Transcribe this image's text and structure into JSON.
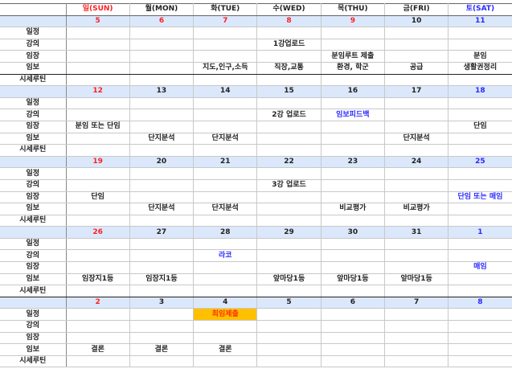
{
  "colors": {
    "sunday": "#ff2020",
    "saturday": "#2a2aff",
    "date_row_bg": "#dbe8fb",
    "highlight_bg": "#ffc000"
  },
  "header": {
    "days": [
      {
        "label": "일(SUN)",
        "color": "red"
      },
      {
        "label": "월(MON)",
        "color": ""
      },
      {
        "label": "화(TUE)",
        "color": ""
      },
      {
        "label": "수(WED)",
        "color": ""
      },
      {
        "label": "목(THU)",
        "color": ""
      },
      {
        "label": "금(FRI)",
        "color": ""
      },
      {
        "label": "토(SAT)",
        "color": "blue"
      }
    ]
  },
  "row_labels": [
    "일정",
    "강의",
    "임장",
    "임보",
    "시세루틴"
  ],
  "weeks": [
    {
      "dates": [
        {
          "t": "5",
          "c": "red"
        },
        {
          "t": "6",
          "c": "red"
        },
        {
          "t": "7",
          "c": "red"
        },
        {
          "t": "8",
          "c": "red"
        },
        {
          "t": "9",
          "c": "red"
        },
        {
          "t": "10",
          "c": ""
        },
        {
          "t": "11",
          "c": "blue"
        }
      ],
      "rows": [
        [
          "",
          "",
          "",
          "",
          "",
          "",
          ""
        ],
        [
          "",
          "",
          "",
          "1강업로드",
          "",
          "",
          ""
        ],
        [
          "",
          "",
          "",
          "",
          "분임루트 제출",
          "",
          "분임"
        ],
        [
          "",
          "",
          "지도,인구,소득",
          "직장,교통",
          "환경, 학군",
          "공급",
          "생활권정리"
        ],
        [
          "",
          "",
          "",
          "",
          "",
          "",
          ""
        ]
      ],
      "styles": {}
    },
    {
      "dates": [
        {
          "t": "12",
          "c": "red"
        },
        {
          "t": "13",
          "c": ""
        },
        {
          "t": "14",
          "c": ""
        },
        {
          "t": "15",
          "c": ""
        },
        {
          "t": "16",
          "c": ""
        },
        {
          "t": "17",
          "c": ""
        },
        {
          "t": "18",
          "c": "blue"
        }
      ],
      "rows": [
        [
          "",
          "",
          "",
          "",
          "",
          "",
          ""
        ],
        [
          "",
          "",
          "",
          "2강 업로드",
          "임보피드백",
          "",
          ""
        ],
        [
          "분임 또는 단임",
          "",
          "",
          "",
          "",
          "",
          "단임"
        ],
        [
          "",
          "단지분석",
          "단지분석",
          "",
          "",
          "단지분석",
          ""
        ],
        [
          "",
          "",
          "",
          "",
          "",
          "",
          ""
        ]
      ],
      "styles": {
        "1-4": "blue"
      }
    },
    {
      "dates": [
        {
          "t": "19",
          "c": "red"
        },
        {
          "t": "20",
          "c": ""
        },
        {
          "t": "21",
          "c": ""
        },
        {
          "t": "22",
          "c": ""
        },
        {
          "t": "23",
          "c": ""
        },
        {
          "t": "24",
          "c": ""
        },
        {
          "t": "25",
          "c": "blue"
        }
      ],
      "rows": [
        [
          "",
          "",
          "",
          "",
          "",
          "",
          ""
        ],
        [
          "",
          "",
          "",
          "3강 업로드",
          "",
          "",
          ""
        ],
        [
          "단임",
          "",
          "",
          "",
          "",
          "",
          "단임 또는 매임"
        ],
        [
          "",
          "단지분석",
          "단지분석",
          "",
          "비교평가",
          "비교평가",
          ""
        ],
        [
          "",
          "",
          "",
          "",
          "",
          "",
          ""
        ]
      ],
      "styles": {
        "2-6": "blue"
      }
    },
    {
      "dates": [
        {
          "t": "26",
          "c": "red"
        },
        {
          "t": "27",
          "c": ""
        },
        {
          "t": "28",
          "c": ""
        },
        {
          "t": "29",
          "c": ""
        },
        {
          "t": "30",
          "c": ""
        },
        {
          "t": "31",
          "c": ""
        },
        {
          "t": "1",
          "c": "blue"
        }
      ],
      "rows": [
        [
          "",
          "",
          "",
          "",
          "",
          "",
          ""
        ],
        [
          "",
          "",
          "라코",
          "",
          "",
          "",
          ""
        ],
        [
          "",
          "",
          "",
          "",
          "",
          "",
          "매임"
        ],
        [
          "임장지1등",
          "임장지1등",
          "",
          "앞마당1등",
          "앞마당1등",
          "앞마당1등",
          ""
        ],
        [
          "",
          "",
          "",
          "",
          "",
          "",
          ""
        ]
      ],
      "styles": {
        "1-2": "blue",
        "2-6": "blue"
      }
    },
    {
      "dates": [
        {
          "t": "2",
          "c": "red"
        },
        {
          "t": "3",
          "c": ""
        },
        {
          "t": "4",
          "c": ""
        },
        {
          "t": "5",
          "c": ""
        },
        {
          "t": "6",
          "c": ""
        },
        {
          "t": "7",
          "c": ""
        },
        {
          "t": "8",
          "c": "blue"
        }
      ],
      "rows": [
        [
          "",
          "",
          "최임제출",
          "",
          "",
          "",
          ""
        ],
        [
          "",
          "",
          "",
          "",
          "",
          "",
          ""
        ],
        [
          "",
          "",
          "",
          "",
          "",
          "",
          ""
        ],
        [
          "결론",
          "결론",
          "결론",
          "",
          "",
          "",
          ""
        ],
        [
          "",
          "",
          "",
          "",
          "",
          "",
          ""
        ]
      ],
      "styles": {
        "0-2": "orange"
      }
    }
  ]
}
